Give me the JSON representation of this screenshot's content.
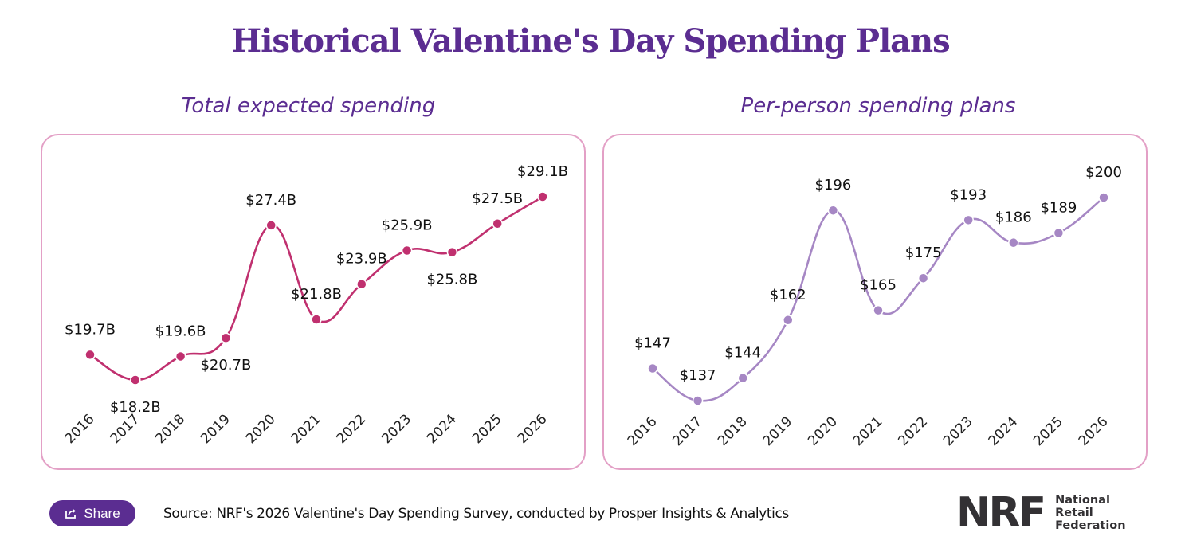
{
  "page": {
    "title": "Historical Valentine's Day Spending Plans",
    "share_label": "Share",
    "share_icon": "share-icon",
    "source": "Source: NRF's 2026 Valentine's Day Spending Survey, conducted by Prosper Insights & Analytics",
    "logo": {
      "mark": "NRF",
      "lines": [
        "National",
        "Retail",
        "Federation"
      ]
    }
  },
  "colors": {
    "title": "#5b2d91",
    "border": "#e3a0c6",
    "total_line": "#c0306f",
    "per_person_line": "#a687c4",
    "share_bg": "#5b2d91"
  },
  "chart_data": [
    {
      "type": "line",
      "title": "Total expected spending",
      "xlabel": "",
      "ylabel": "",
      "categories": [
        "2016",
        "2017",
        "2018",
        "2019",
        "2020",
        "2021",
        "2022",
        "2023",
        "2024",
        "2025",
        "2026"
      ],
      "values": [
        19.7,
        18.2,
        19.6,
        20.7,
        27.4,
        21.8,
        23.9,
        25.9,
        25.8,
        27.5,
        29.1
      ],
      "labels": [
        "$19.7B",
        "$18.2B",
        "$19.6B",
        "$20.7B",
        "$27.4B",
        "$21.8B",
        "$23.9B",
        "$25.9B",
        "$25.8B",
        "$27.5B",
        "$29.1B"
      ],
      "label_pos": [
        "above",
        "below",
        "above",
        "below",
        "above",
        "above",
        "above",
        "above",
        "below",
        "above",
        "above"
      ],
      "ylim": [
        18.2,
        29.1
      ],
      "grid": false,
      "legend": "none"
    },
    {
      "type": "line",
      "title": "Per-person spending plans",
      "xlabel": "",
      "ylabel": "",
      "categories": [
        "2016",
        "2017",
        "2018",
        "2019",
        "2020",
        "2021",
        "2022",
        "2023",
        "2024",
        "2025",
        "2026"
      ],
      "values": [
        147,
        137,
        144,
        162,
        196,
        165,
        175,
        193,
        186,
        189,
        200
      ],
      "labels": [
        "$147",
        "$137",
        "$144",
        "$162",
        "$196",
        "$165",
        "$175",
        "$193",
        "$186",
        "$189",
        "$200"
      ],
      "label_pos": [
        "above",
        "above",
        "above",
        "above",
        "above",
        "above",
        "above",
        "above",
        "above",
        "above",
        "above"
      ],
      "ylim": [
        137,
        200
      ],
      "grid": false,
      "legend": "none"
    }
  ]
}
